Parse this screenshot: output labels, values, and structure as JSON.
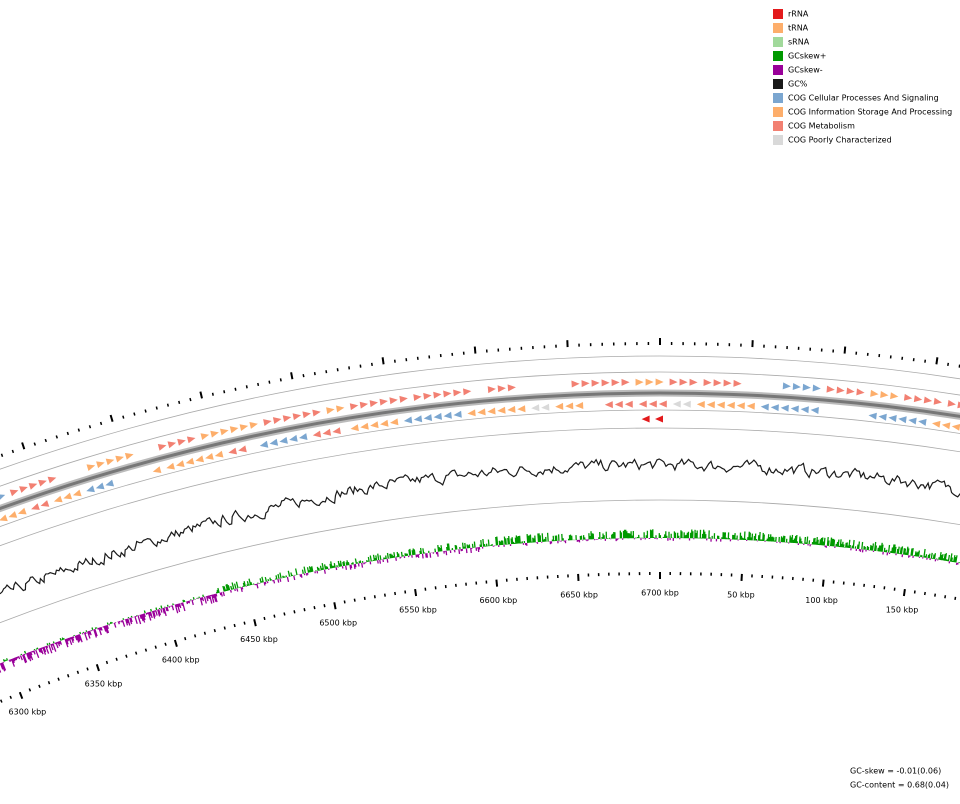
{
  "legend": {
    "items": [
      {
        "label": "rRNA",
        "color": "#e31a1c"
      },
      {
        "label": "tRNA",
        "color": "#fdae6b"
      },
      {
        "label": "sRNA",
        "color": "#a1d99b"
      },
      {
        "label": "GCskew+",
        "color": "#009900"
      },
      {
        "label": "GCskew-",
        "color": "#990099"
      },
      {
        "label": "GC%",
        "color": "#1a1a1a"
      },
      {
        "label": "COG Cellular Processes And Signaling",
        "color": "#7ba6d0"
      },
      {
        "label": "COG Information Storage And Processing",
        "color": "#fdae6b"
      },
      {
        "label": "COG Metabolism",
        "color": "#f28072"
      },
      {
        "label": "COG Poorly Characterized",
        "color": "#d9d9d9"
      }
    ]
  },
  "ruler": {
    "labels": [
      "6300 kbp",
      "6350 kbp",
      "6400 kbp",
      "6450 kbp",
      "6500 kbp",
      "6550 kbp",
      "6600 kbp",
      "6650 kbp",
      "6700 kbp",
      "50 kbp",
      "100 kbp",
      "150 kbp"
    ]
  },
  "footer": {
    "lines": [
      "GC-skew = -0.01(0.06)",
      "GC-content = 0.68(0.04)"
    ]
  }
}
